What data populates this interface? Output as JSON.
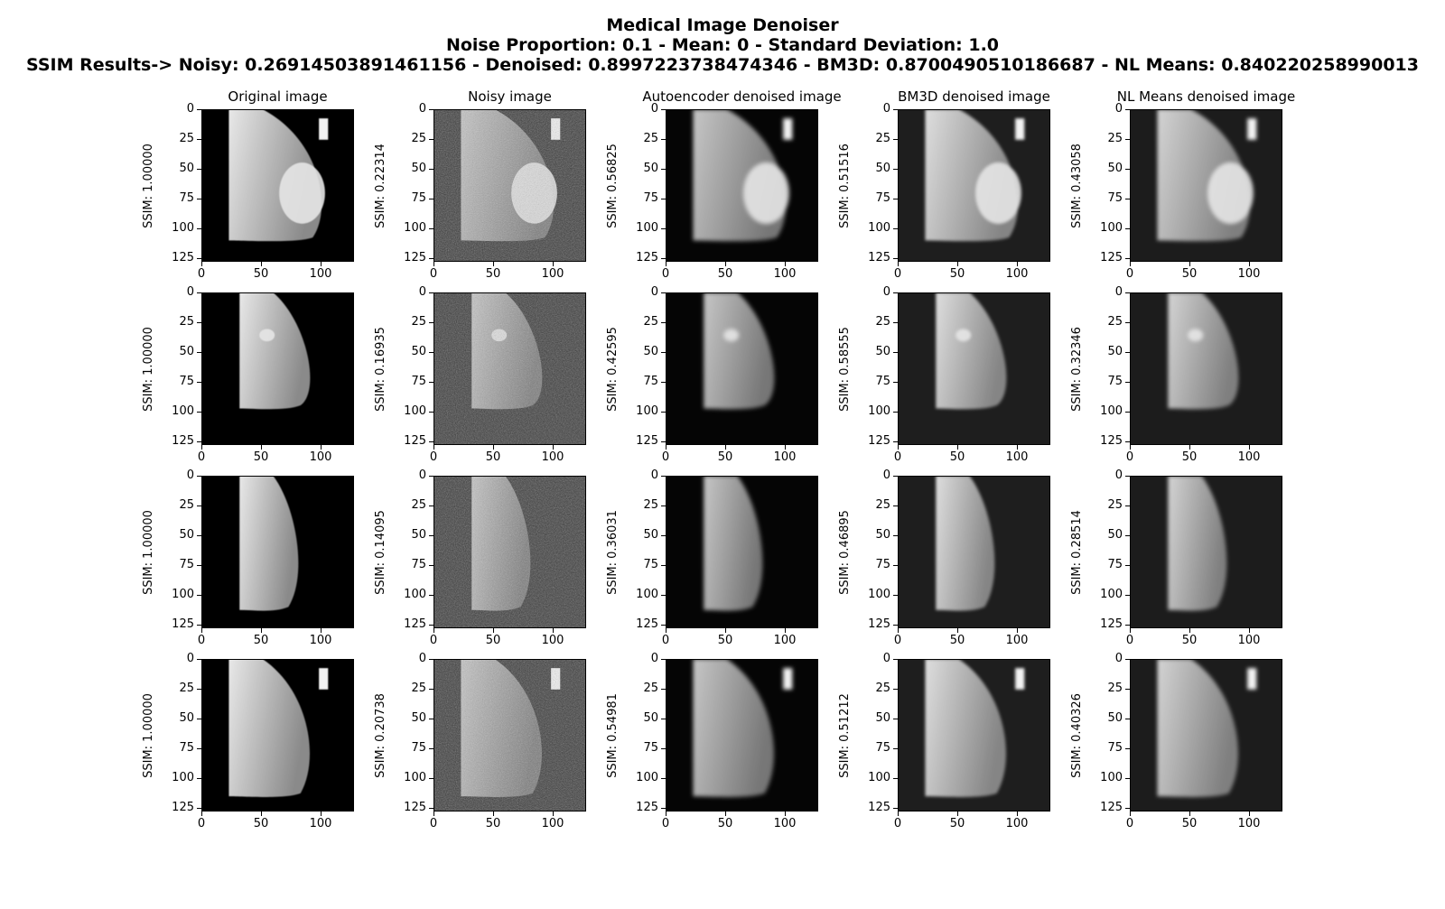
{
  "figure": {
    "title_line1": "Medical Image Denoiser",
    "title_line2": "Noise Proportion: 0.1 - Mean: 0 - Standard Deviation: 1.0",
    "title_line3": "SSIM Results-> Noisy: 0.26914503891461156 - Denoised: 0.8997223738474346 - BM3D: 0.8700490510186687 - NL Means: 0.840220258990013"
  },
  "chart_data": {
    "type": "image-grid",
    "columns": [
      "Original image",
      "Noisy image",
      "Autoencoder denoised image",
      "BM3D denoised image",
      "NL Means denoised image"
    ],
    "xticks": [
      0,
      50,
      100
    ],
    "yticks": [
      0,
      25,
      50,
      75,
      100,
      125
    ],
    "xlim": [
      0,
      128
    ],
    "ylim": [
      128,
      0
    ],
    "ssim_label_prefix": "SSIM: ",
    "rows": [
      {
        "ssim": [
          "1.00000",
          "0.22314",
          "0.56825",
          "0.51516",
          "0.43058"
        ]
      },
      {
        "ssim": [
          "1.00000",
          "0.16935",
          "0.42595",
          "0.58555",
          "0.32346"
        ]
      },
      {
        "ssim": [
          "1.00000",
          "0.14095",
          "0.36031",
          "0.46895",
          "0.28514"
        ]
      },
      {
        "ssim": [
          "1.00000",
          "0.20738",
          "0.54981",
          "0.51212",
          "0.40326"
        ]
      }
    ]
  },
  "colors": {
    "background": "#ffffff",
    "original_bg": "#000000",
    "noisy_bg": "#3a3a3a",
    "autoencoder_bg": "#050505",
    "bm3d_bg": "#1e1e1e",
    "nlmeans_bg": "#1c1c1c"
  }
}
